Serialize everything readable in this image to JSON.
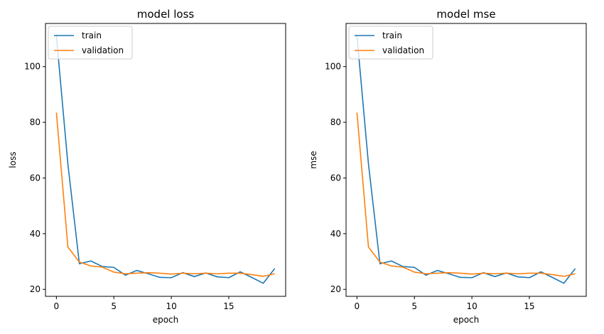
{
  "chart_data": [
    {
      "type": "line",
      "title": "model loss",
      "xlabel": "epoch",
      "ylabel": "loss",
      "xlim": [
        -0.95,
        19.95
      ],
      "ylim": [
        17.5,
        115.5
      ],
      "xticks": [
        0,
        5,
        10,
        15
      ],
      "yticks": [
        20,
        40,
        60,
        80,
        100
      ],
      "grid": false,
      "legend": "top-left",
      "x": [
        0,
        1,
        2,
        3,
        4,
        5,
        6,
        7,
        8,
        9,
        10,
        11,
        12,
        13,
        14,
        15,
        16,
        17,
        18,
        19
      ],
      "series": [
        {
          "name": "train",
          "color": "#1f77b4",
          "values": [
            111,
            65,
            29.2,
            30.2,
            28.2,
            27.9,
            25.1,
            26.8,
            25.6,
            24.3,
            24.2,
            26.0,
            24.6,
            25.9,
            24.5,
            24.2,
            26.3,
            24.3,
            22.2,
            27.5
          ]
        },
        {
          "name": "validation",
          "color": "#ff7f0e",
          "values": [
            83.5,
            35.2,
            29.8,
            28.4,
            28.0,
            26.2,
            25.6,
            25.8,
            26.0,
            25.8,
            25.5,
            25.8,
            25.6,
            25.8,
            25.6,
            25.8,
            25.8,
            25.3,
            24.7,
            25.6
          ]
        }
      ]
    },
    {
      "type": "line",
      "title": "model mse",
      "xlabel": "epoch",
      "ylabel": "mse",
      "xlim": [
        -0.95,
        19.95
      ],
      "ylim": [
        17.5,
        115.5
      ],
      "xticks": [
        0,
        5,
        10,
        15
      ],
      "yticks": [
        20,
        40,
        60,
        80,
        100
      ],
      "grid": false,
      "legend": "top-left",
      "x": [
        0,
        1,
        2,
        3,
        4,
        5,
        6,
        7,
        8,
        9,
        10,
        11,
        12,
        13,
        14,
        15,
        16,
        17,
        18,
        19
      ],
      "series": [
        {
          "name": "train",
          "color": "#1f77b4",
          "values": [
            111,
            65,
            29.2,
            30.2,
            28.2,
            27.9,
            25.1,
            26.8,
            25.6,
            24.3,
            24.2,
            26.0,
            24.6,
            25.9,
            24.5,
            24.2,
            26.3,
            24.3,
            22.2,
            27.5
          ]
        },
        {
          "name": "validation",
          "color": "#ff7f0e",
          "values": [
            83.5,
            35.2,
            29.8,
            28.4,
            28.0,
            26.2,
            25.6,
            25.8,
            26.0,
            25.8,
            25.5,
            25.8,
            25.6,
            25.8,
            25.6,
            25.8,
            25.8,
            25.3,
            24.7,
            25.6
          ]
        }
      ]
    }
  ]
}
